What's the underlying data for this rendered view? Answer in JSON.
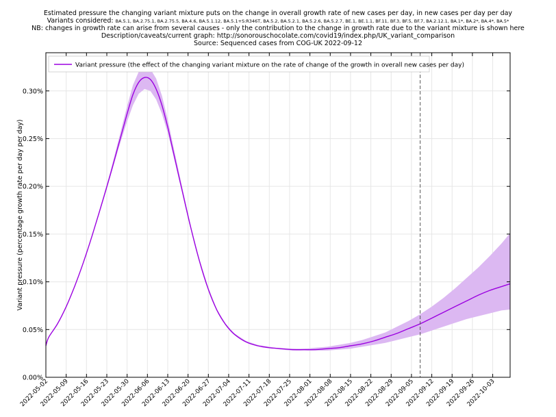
{
  "chart_data": {
    "type": "line",
    "title_lines": [
      "Estimated pressure the changing variant mixture puts on the change in overall growth rate of new cases per day, in new cases per day per day",
      "NB: changes in growth rate can arise from several causes - only the contribution to the change in growth rate due to the variant mixture is shown here",
      "Description/caveats/current graph: http://sonorouschocolate.com/covid19/index.php/UK_variant_comparison",
      "Source: Sequenced cases from COG-UK 2022-09-12"
    ],
    "variants_label": "Variants considered:",
    "variants_list": "BA.5.1, BA.2.75.1, BA.2.75.5, BA.4.6, BA.5.1.12, BA.5.1+S:R346T, BA.5.2, BA.5.2.1, BA.5.2.6, BA.5.2.7, BE.1, BE.1.1, BF.11, BF.3, BF.5, BF.7, BA.2.12.1, BA.1*, BA.2*, BA.4*, BA.5*",
    "ylabel": "Variant pressure (percentage growth rate per day per day)",
    "legend": "Variant pressure (the effect of the changing variant mixture on the rate of change of the growth in overall new cases per day)",
    "ylim": [
      0,
      0.34
    ],
    "yticks": [
      0,
      0.05,
      0.1,
      0.15,
      0.2,
      0.25,
      0.3
    ],
    "ytick_labels": [
      "0.00%",
      "0.05%",
      "0.10%",
      "0.15%",
      "0.20%",
      "0.25%",
      "0.30%"
    ],
    "xlim": [
      "2022-05-02",
      "2022-10-09"
    ],
    "xtick_labels": [
      "2022-05-02",
      "2022-05-09",
      "2022-05-16",
      "2022-05-23",
      "2022-05-30",
      "2022-06-06",
      "2022-06-13",
      "2022-06-20",
      "2022-06-27",
      "2022-07-04",
      "2022-07-11",
      "2022-07-18",
      "2022-07-25",
      "2022-08-01",
      "2022-08-08",
      "2022-08-15",
      "2022-08-22",
      "2022-08-29",
      "2022-09-05",
      "2022-09-12",
      "2022-09-19",
      "2022-09-26",
      "2022-10-03"
    ],
    "vline_date": "2022-09-08",
    "series": [
      {
        "name": "Variant pressure (the effect of the changing variant mixture on the rate of change of the growth in overall new cases per day)",
        "color": "#9b00e0",
        "band_color": "#dcb8f2",
        "x": [
          "2022-04-30",
          "2022-05-03",
          "2022-05-06",
          "2022-05-09",
          "2022-05-12",
          "2022-05-15",
          "2022-05-18",
          "2022-05-21",
          "2022-05-24",
          "2022-05-27",
          "2022-05-30",
          "2022-06-01",
          "2022-06-03",
          "2022-06-05",
          "2022-06-07",
          "2022-06-09",
          "2022-06-11",
          "2022-06-13",
          "2022-06-15",
          "2022-06-18",
          "2022-06-21",
          "2022-06-24",
          "2022-06-27",
          "2022-06-30",
          "2022-07-03",
          "2022-07-06",
          "2022-07-10",
          "2022-07-14",
          "2022-07-18",
          "2022-07-22",
          "2022-07-26",
          "2022-07-30",
          "2022-08-03",
          "2022-08-07",
          "2022-08-11",
          "2022-08-15",
          "2022-08-19",
          "2022-08-23",
          "2022-08-27",
          "2022-08-31",
          "2022-09-04",
          "2022-09-08",
          "2022-09-12",
          "2022-09-16",
          "2022-09-20",
          "2022-09-24",
          "2022-09-28",
          "2022-10-02",
          "2022-10-06",
          "2022-10-09"
        ],
        "y": [
          0.033,
          0.042,
          0.056,
          0.074,
          0.096,
          0.121,
          0.149,
          0.179,
          0.21,
          0.243,
          0.276,
          0.296,
          0.309,
          0.314,
          0.312,
          0.302,
          0.285,
          0.262,
          0.235,
          0.195,
          0.156,
          0.121,
          0.092,
          0.07,
          0.055,
          0.045,
          0.037,
          0.033,
          0.031,
          0.03,
          0.029,
          0.029,
          0.029,
          0.03,
          0.031,
          0.033,
          0.035,
          0.038,
          0.042,
          0.046,
          0.051,
          0.056,
          0.062,
          0.068,
          0.074,
          0.08,
          0.086,
          0.091,
          0.095,
          0.098
        ],
        "lower": [
          0.033,
          0.042,
          0.056,
          0.074,
          0.096,
          0.121,
          0.149,
          0.178,
          0.208,
          0.239,
          0.268,
          0.285,
          0.297,
          0.302,
          0.3,
          0.291,
          0.276,
          0.256,
          0.231,
          0.193,
          0.155,
          0.12,
          0.091,
          0.07,
          0.055,
          0.045,
          0.037,
          0.033,
          0.031,
          0.029,
          0.028,
          0.028,
          0.028,
          0.028,
          0.029,
          0.03,
          0.032,
          0.034,
          0.036,
          0.039,
          0.042,
          0.045,
          0.049,
          0.053,
          0.057,
          0.061,
          0.064,
          0.067,
          0.07,
          0.071
        ],
        "upper": [
          0.033,
          0.042,
          0.056,
          0.074,
          0.096,
          0.121,
          0.15,
          0.181,
          0.213,
          0.248,
          0.284,
          0.306,
          0.32,
          0.326,
          0.323,
          0.313,
          0.295,
          0.27,
          0.241,
          0.199,
          0.158,
          0.123,
          0.094,
          0.071,
          0.056,
          0.046,
          0.038,
          0.034,
          0.032,
          0.03,
          0.03,
          0.03,
          0.031,
          0.032,
          0.034,
          0.036,
          0.039,
          0.043,
          0.047,
          0.053,
          0.059,
          0.066,
          0.074,
          0.083,
          0.093,
          0.104,
          0.115,
          0.127,
          0.14,
          0.151
        ]
      }
    ]
  }
}
